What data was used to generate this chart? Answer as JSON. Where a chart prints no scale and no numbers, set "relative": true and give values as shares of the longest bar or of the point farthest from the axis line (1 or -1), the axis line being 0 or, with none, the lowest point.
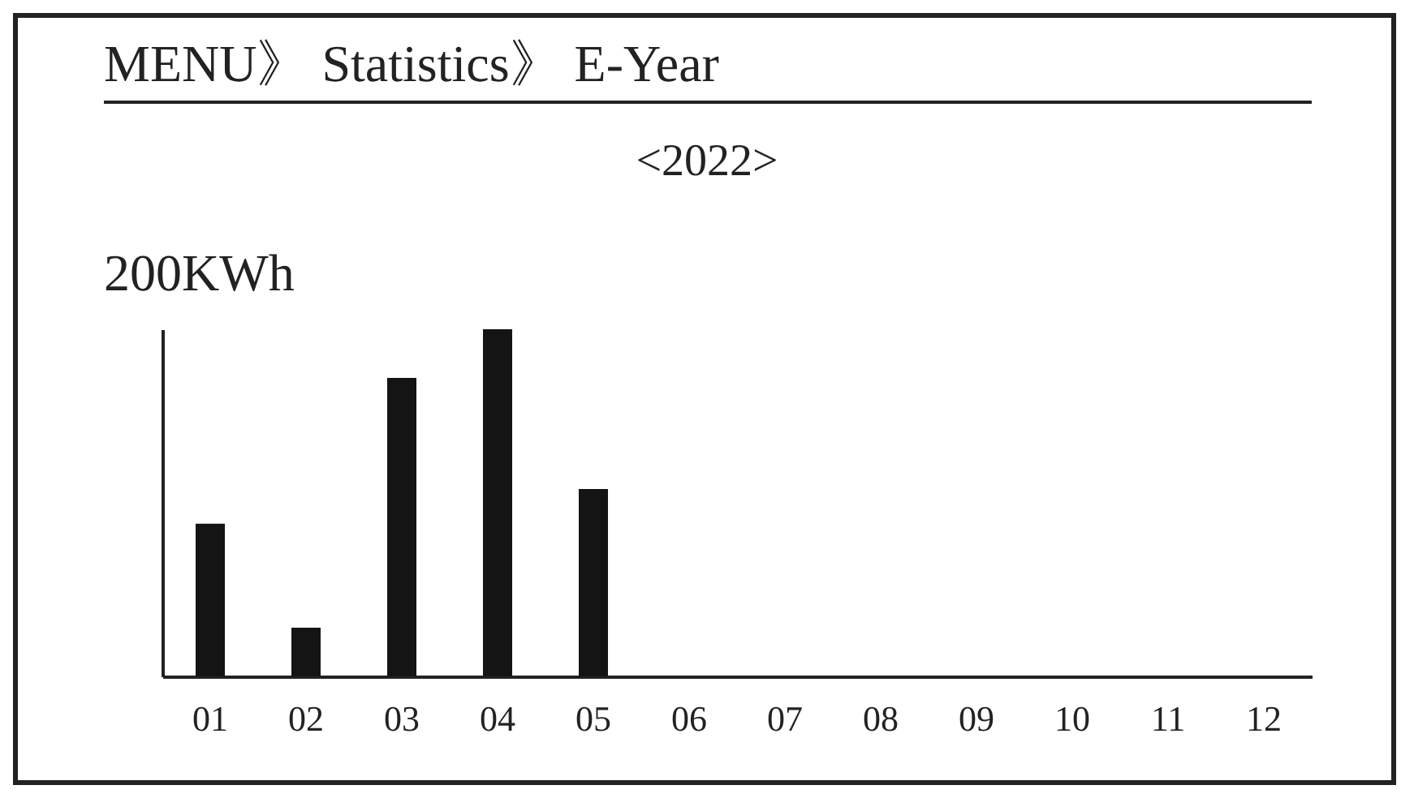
{
  "chart_data": {
    "type": "bar",
    "title": "MENU》 Statistics》 E-Year",
    "subtitle": "<2022>",
    "ylabel": "200KWh",
    "relative": true,
    "color": "#141414",
    "categories": [
      "01",
      "02",
      "03",
      "04",
      "05",
      "06",
      "07",
      "08",
      "09",
      "10",
      "11",
      "12"
    ],
    "values": [
      0.44,
      0.14,
      0.86,
      1,
      0.54,
      null,
      null,
      null,
      null,
      null,
      null,
      null
    ],
    "grid": false
  }
}
